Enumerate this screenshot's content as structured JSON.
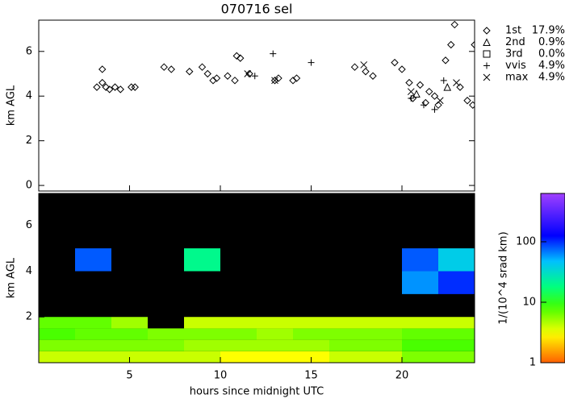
{
  "chart_data": [
    {
      "type": "scatter",
      "title": "070716 sel",
      "ylabel": "km AGL",
      "xlim": [
        0,
        24
      ],
      "ylim": [
        -0.25,
        7.4
      ],
      "yticks": [
        0,
        2,
        4,
        6
      ],
      "series": [
        {
          "name": "1st",
          "label": "17.9%",
          "marker": "diamond",
          "color": "#000000",
          "x": [
            3.2,
            3.5,
            3.5,
            3.7,
            3.9,
            4.2,
            4.5,
            5.1,
            5.3,
            6.9,
            7.3,
            8.3,
            9.0,
            9.3,
            9.6,
            9.8,
            10.4,
            10.8,
            10.9,
            11.1,
            11.6,
            13.0,
            13.2,
            14.0,
            14.2,
            17.4,
            18.0,
            18.4,
            19.6,
            20.0,
            20.4,
            20.6,
            21.0,
            21.3,
            21.5,
            21.8,
            22.0,
            22.4,
            22.7,
            22.9,
            23.2,
            23.6,
            23.9,
            24.0
          ],
          "y": [
            4.4,
            4.6,
            5.2,
            4.4,
            4.3,
            4.4,
            4.3,
            4.4,
            4.4,
            5.3,
            5.2,
            5.1,
            5.3,
            5.0,
            4.7,
            4.8,
            4.9,
            4.7,
            5.8,
            5.7,
            5.0,
            4.7,
            4.8,
            4.7,
            4.8,
            5.3,
            5.1,
            4.9,
            5.5,
            5.2,
            4.6,
            3.9,
            4.5,
            3.7,
            4.2,
            4.0,
            3.6,
            5.6,
            6.3,
            7.2,
            4.4,
            3.8,
            3.6,
            6.3
          ]
        },
        {
          "name": "2nd",
          "label": "0.9%",
          "marker": "triangle",
          "color": "#000000",
          "x": [
            20.8,
            22.5
          ],
          "y": [
            4.1,
            4.4
          ]
        },
        {
          "name": "3rd",
          "label": "0.0%",
          "marker": "square",
          "color": "#000000",
          "x": [],
          "y": []
        },
        {
          "name": "vvis",
          "label": "4.9%",
          "marker": "plus",
          "color": "#000000",
          "x": [
            11.9,
            12.9,
            15.0,
            20.5,
            21.2,
            21.8,
            22.3
          ],
          "y": [
            4.9,
            5.9,
            5.5,
            3.9,
            3.6,
            3.4,
            4.7
          ]
        },
        {
          "name": "max",
          "label": "4.9%",
          "marker": "cross",
          "color": "#000000",
          "x": [
            11.5,
            13.0,
            17.9,
            20.5,
            22.1,
            23.0
          ],
          "y": [
            5.0,
            4.7,
            5.4,
            4.2,
            3.8,
            4.6
          ]
        }
      ]
    },
    {
      "type": "heatmap",
      "ylabel": "km AGL",
      "xlabel": "hours since midnight UTC",
      "xlim": [
        0,
        24
      ],
      "xticks": [
        5,
        10,
        15,
        20
      ],
      "ylim": [
        0,
        7.4
      ],
      "yticks": [
        2,
        4,
        6
      ],
      "x_edges": [
        0,
        2,
        4,
        6,
        8,
        10,
        12,
        14,
        16,
        18,
        20,
        22,
        24
      ],
      "y_edges": [
        0,
        0.5,
        1,
        1.5,
        2,
        3,
        4,
        5,
        6,
        7.4
      ],
      "z": [
        [
          4,
          4,
          4,
          4,
          4,
          3,
          3,
          3,
          4,
          4,
          6,
          6
        ],
        [
          6,
          6,
          6,
          6,
          5,
          5,
          5,
          5,
          6,
          6,
          8,
          8
        ],
        [
          8,
          7,
          7,
          6,
          6,
          6,
          5,
          6,
          6,
          6,
          7,
          7
        ],
        [
          7,
          7,
          5,
          null,
          4,
          4,
          4,
          4,
          4,
          4,
          4,
          4
        ],
        [
          null,
          null,
          null,
          null,
          null,
          null,
          null,
          null,
          null,
          null,
          null,
          null
        ],
        [
          null,
          null,
          null,
          null,
          null,
          null,
          null,
          null,
          null,
          null,
          60,
          100
        ],
        [
          null,
          80,
          null,
          null,
          20,
          null,
          null,
          null,
          null,
          null,
          80,
          40
        ],
        [
          null,
          null,
          null,
          null,
          null,
          null,
          null,
          null,
          null,
          null,
          null,
          null
        ],
        [
          null,
          null,
          null,
          null,
          null,
          null,
          null,
          null,
          null,
          null,
          null,
          null
        ]
      ],
      "clim": [
        1,
        630
      ],
      "cticks": [
        1,
        10,
        100
      ],
      "clabel": "1/(10^4 srad km)",
      "log_color": true
    }
  ]
}
